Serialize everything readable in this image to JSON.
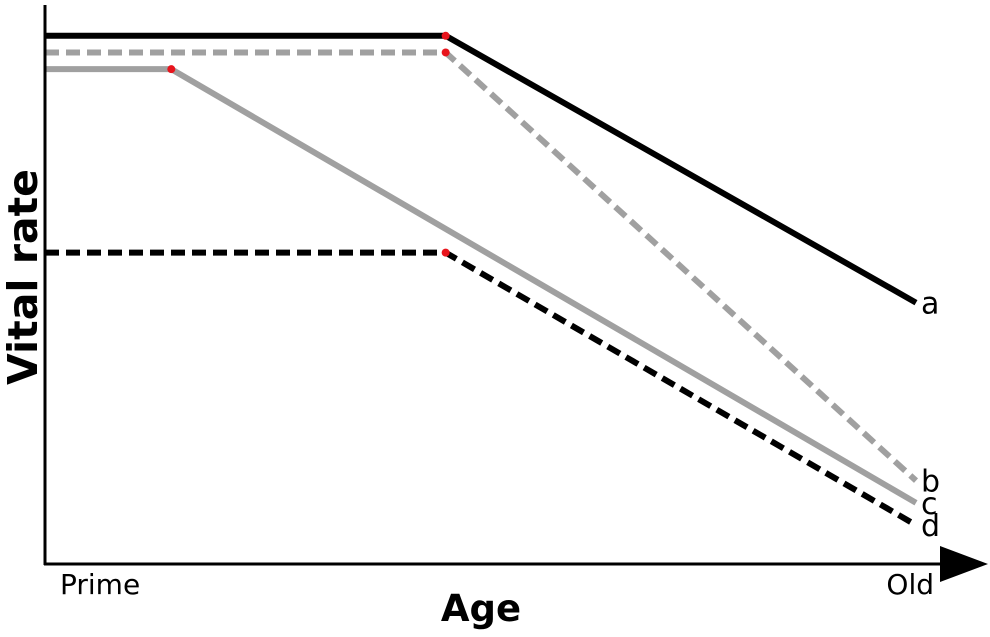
{
  "chart_data": {
    "type": "line",
    "title": "",
    "xlabel": "Age",
    "ylabel": "Vital rate",
    "x_tick_labels": [
      "Prime",
      "Old"
    ],
    "xlim": [
      0,
      1
    ],
    "ylim": [
      0,
      1
    ],
    "grid": false,
    "series": [
      {
        "name": "a",
        "style": "solid",
        "color": "#000000",
        "points": [
          [
            0,
            0.95
          ],
          [
            0.46,
            0.95
          ],
          [
            1,
            0.47
          ]
        ],
        "breakpoint": [
          0.46,
          0.95
        ]
      },
      {
        "name": "b",
        "style": "dashed",
        "color": "#a0a0a0",
        "points": [
          [
            0,
            0.92
          ],
          [
            0.46,
            0.92
          ],
          [
            1,
            0.15
          ]
        ],
        "breakpoint": [
          0.46,
          0.92
        ]
      },
      {
        "name": "c",
        "style": "solid",
        "color": "#a0a0a0",
        "points": [
          [
            0,
            0.89
          ],
          [
            0.145,
            0.89
          ],
          [
            1,
            0.11
          ]
        ],
        "breakpoint": [
          0.145,
          0.89
        ]
      },
      {
        "name": "d",
        "style": "dashed",
        "color": "#000000",
        "points": [
          [
            0,
            0.56
          ],
          [
            0.46,
            0.56
          ],
          [
            1,
            0.07
          ]
        ],
        "breakpoint": [
          0.46,
          0.56
        ]
      }
    ],
    "breakpoint_color": "#e8141c"
  }
}
